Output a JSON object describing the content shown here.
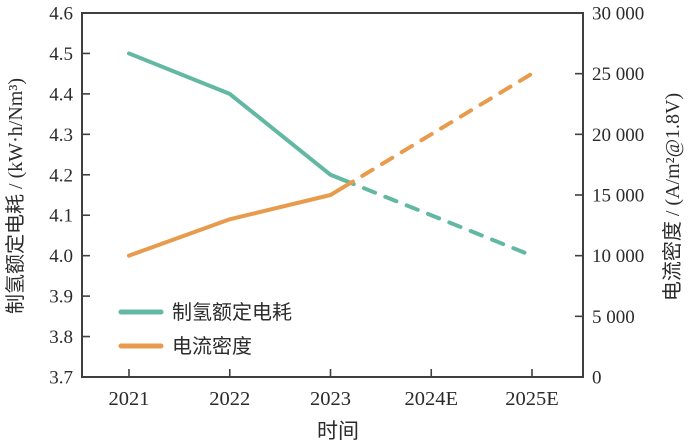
{
  "chart_data": {
    "type": "line",
    "title": "",
    "categories": [
      "2021",
      "2022",
      "2023",
      "2024E",
      "2025E"
    ],
    "x_axis": {
      "label": "时间"
    },
    "y_left": {
      "label": "制氢额定电耗 / (kW·h/Nm³)",
      "min": 3.7,
      "max": 4.6,
      "tick_step": 0.1,
      "tick_labels": [
        "3.7",
        "3.8",
        "3.9",
        "4.0",
        "4.1",
        "4.2",
        "4.3",
        "4.4",
        "4.5",
        "4.6"
      ]
    },
    "y_right": {
      "label": "电流密度 / (A/m²@1.8V)",
      "min": 0,
      "max": 30000,
      "tick_step": 5000,
      "tick_labels": [
        "0",
        "5 000",
        "10 000",
        "15 000",
        "20 000",
        "25 000",
        "30 000"
      ]
    },
    "series": [
      {
        "name": "制氢额定电耗",
        "id": "rated-power-consumption",
        "axis": "left",
        "color": "#62b8a2",
        "values": [
          4.5,
          4.4,
          4.2,
          4.1,
          4.0
        ],
        "solid_until_index": 2,
        "style_after": "dashed"
      },
      {
        "name": "电流密度",
        "id": "current-density",
        "axis": "right",
        "color": "#e89b4c",
        "values": [
          10000,
          13000,
          15000,
          20000,
          25000
        ],
        "solid_until_index": 2,
        "style_after": "dashed"
      }
    ],
    "legend": {
      "position": "lower-left",
      "entries": [
        "制氢额定电耗",
        "电流密度"
      ]
    },
    "grid": false,
    "frame": true,
    "frame_color": "#3f3f3f",
    "text_color": "#2b2b2b"
  }
}
